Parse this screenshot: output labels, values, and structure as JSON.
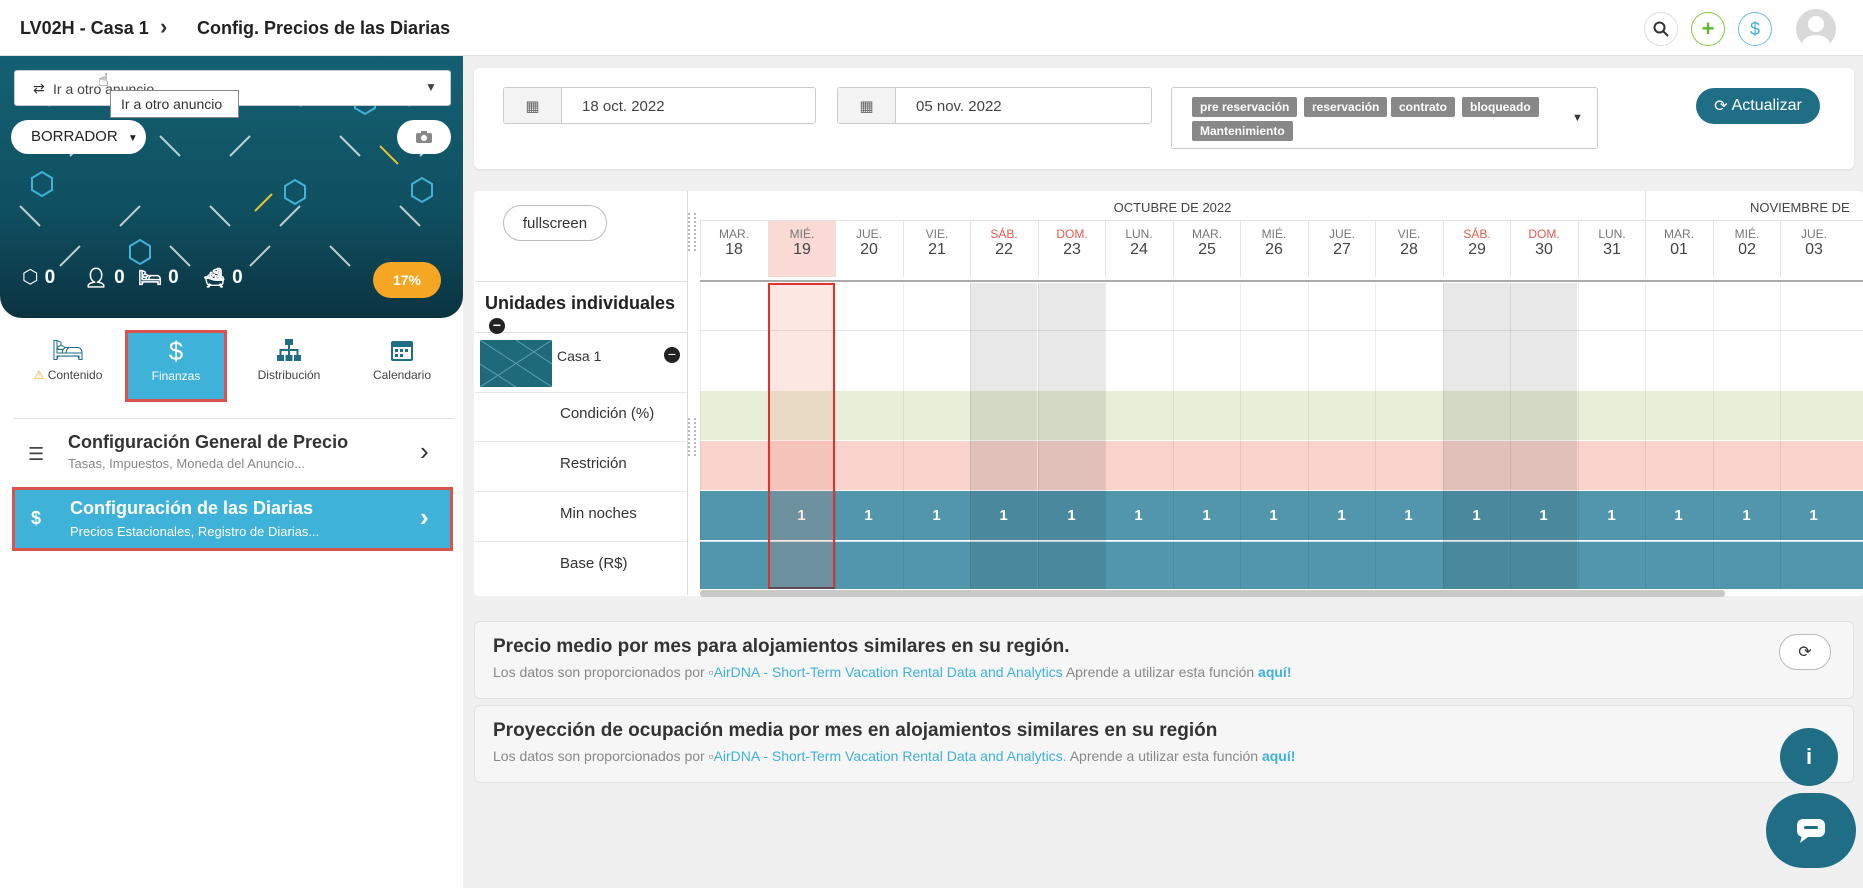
{
  "header": {
    "listing": "LV02H - Casa 1",
    "page": "Config. Precios de las Diarias",
    "icons": [
      "search-icon",
      "add-icon",
      "dollar-icon",
      "avatar"
    ]
  },
  "sidebar": {
    "selector_placeholder": "Ir a otro anuncio",
    "tooltip": "Ir a otro anuncio",
    "status_dropdown": "BORRADOR",
    "stats": [
      {
        "icon": "cube-icon",
        "value": "0"
      },
      {
        "icon": "user-icon",
        "value": "0"
      },
      {
        "icon": "bed-icon",
        "value": "0"
      },
      {
        "icon": "bath-icon",
        "value": "0"
      }
    ],
    "completion": "17%",
    "tabs": [
      {
        "label": "Contenido",
        "icon": "bed-icon",
        "warning": true
      },
      {
        "label": "Finanzas",
        "icon": "dollar-icon",
        "active": true
      },
      {
        "label": "Distribución",
        "icon": "sitemap-icon"
      },
      {
        "label": "Calendario",
        "icon": "calendar-icon"
      }
    ],
    "menu": [
      {
        "title": "Configuración General de Precio",
        "subtitle": "Tasas, Impuestos, Moneda del Anuncio..."
      },
      {
        "title": "Configuración de las Diarias",
        "subtitle": "Precios Estacionales, Registro de Diarias...",
        "active": true
      }
    ]
  },
  "filters": {
    "start_date": "18 oct. 2022",
    "end_date": "05 nov. 2022",
    "statuses": [
      "pre reservación",
      "reservación",
      "contrato",
      "bloqueado",
      "Mantenimiento"
    ],
    "refresh_label": "Actualizar"
  },
  "calendar": {
    "fullscreen_label": "fullscreen",
    "units_header": "Unidades individuales",
    "unit_name": "Casa 1",
    "rows": [
      "Condición (%)",
      "Restrición",
      "Min noches",
      "Base (R$)"
    ],
    "months": [
      "OCTUBRE DE 2022",
      "NOVIEMBRE DE"
    ],
    "days": [
      {
        "dow": "MAR.",
        "day": "18"
      },
      {
        "dow": "MIÉ.",
        "day": "19",
        "today": true
      },
      {
        "dow": "JUE.",
        "day": "20"
      },
      {
        "dow": "VIE.",
        "day": "21"
      },
      {
        "dow": "SÁB.",
        "day": "22",
        "weekend": true
      },
      {
        "dow": "DOM.",
        "day": "23",
        "weekend": true
      },
      {
        "dow": "LUN.",
        "day": "24"
      },
      {
        "dow": "MAR.",
        "day": "25"
      },
      {
        "dow": "MIÉ.",
        "day": "26"
      },
      {
        "dow": "JUE.",
        "day": "27"
      },
      {
        "dow": "VIE.",
        "day": "28"
      },
      {
        "dow": "SÁB.",
        "day": "29",
        "weekend": true
      },
      {
        "dow": "DOM.",
        "day": "30",
        "weekend": true
      },
      {
        "dow": "LUN.",
        "day": "31"
      },
      {
        "dow": "MAR.",
        "day": "01"
      },
      {
        "dow": "MIÉ.",
        "day": "02"
      },
      {
        "dow": "JUE.",
        "day": "03"
      }
    ],
    "min_nights": [
      "",
      "1",
      "1",
      "1",
      "1",
      "1",
      "1",
      "1",
      "1",
      "1",
      "1",
      "1",
      "1",
      "1",
      "1",
      "1",
      "1"
    ]
  },
  "cards": [
    {
      "title": "Precio medio por mes para alojamientos similares en su región.",
      "prefix": "Los datos son proporcionados por",
      "link": "AirDNA - Short-Term Vacation Rental Data and Analytics",
      "suffix": "Aprende a utilizar esta función",
      "here": "aquí!"
    },
    {
      "title": "Proyección de ocupación media por mes en alojamientos similares en su región",
      "prefix": "Los datos son proporcionados por",
      "link": "AirDNA - Short-Term Vacation Rental Data and Analytics.",
      "suffix": "Aprende a utilizar esta función",
      "here": "aquí!"
    }
  ],
  "colors": {
    "accent": "#1f6e86",
    "active": "#3fb2d9",
    "highlight": "#d9534f",
    "badge": "#888888",
    "warning": "#f5a623"
  }
}
